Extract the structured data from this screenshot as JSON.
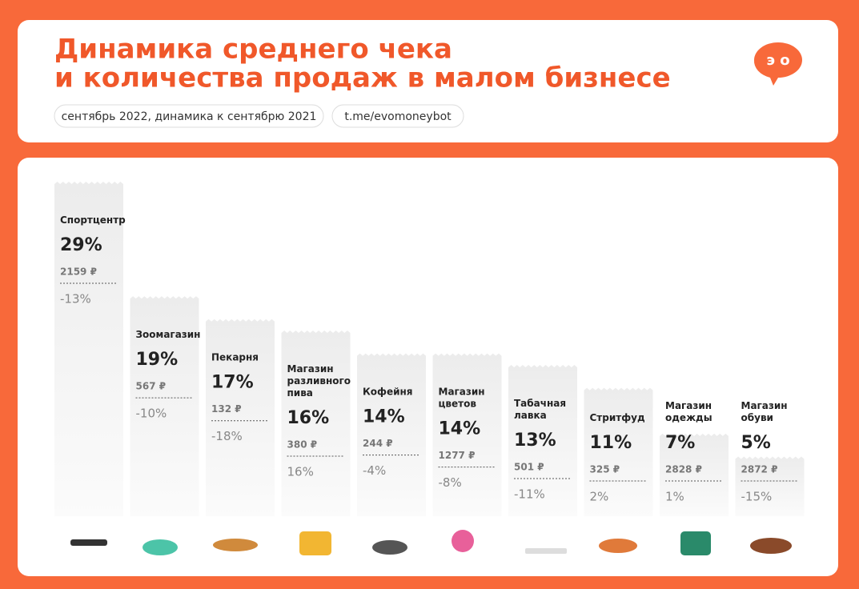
{
  "chart_data": {
    "type": "bar",
    "title": [
      "Динамика среднего чека",
      "и количества продаж в малом бизнесе"
    ],
    "subtitle": "сентябрь 2022, динамика к сентябрю 2021",
    "source": "t.me/evomoneybot",
    "logo": "э о",
    "categories": [
      "Спортцентр",
      "Зоомагазин",
      "Пекарня",
      "Магазин разливного пива",
      "Кофейня",
      "Магазин цветов",
      "Табачная лавка",
      "Стритфуд",
      "Магазин одежды",
      "Магазин обуви"
    ],
    "values": [
      29,
      19,
      17,
      16,
      14,
      14,
      13,
      11,
      7,
      5
    ],
    "value_labels": [
      "29%",
      "19%",
      "17%",
      "16%",
      "14%",
      "14%",
      "13%",
      "11%",
      "7%",
      "5%"
    ],
    "check_values": [
      2159,
      567,
      132,
      380,
      244,
      1277,
      501,
      325,
      2828,
      2872
    ],
    "check_labels": [
      "2159 ₽",
      "567 ₽",
      "132 ₽",
      "380 ₽",
      "244 ₽",
      "1277 ₽",
      "501 ₽",
      "325 ₽",
      "2828 ₽",
      "2872 ₽"
    ],
    "change_values": [
      -13,
      -10,
      -18,
      16,
      -4,
      -8,
      -11,
      2,
      1,
      -15
    ],
    "change_labels": [
      "-13%",
      "-10%",
      "-18%",
      "16%",
      "-4%",
      "-8%",
      "-11%",
      "2%",
      "1%",
      "-15%"
    ],
    "color": "#f0f0f0"
  }
}
